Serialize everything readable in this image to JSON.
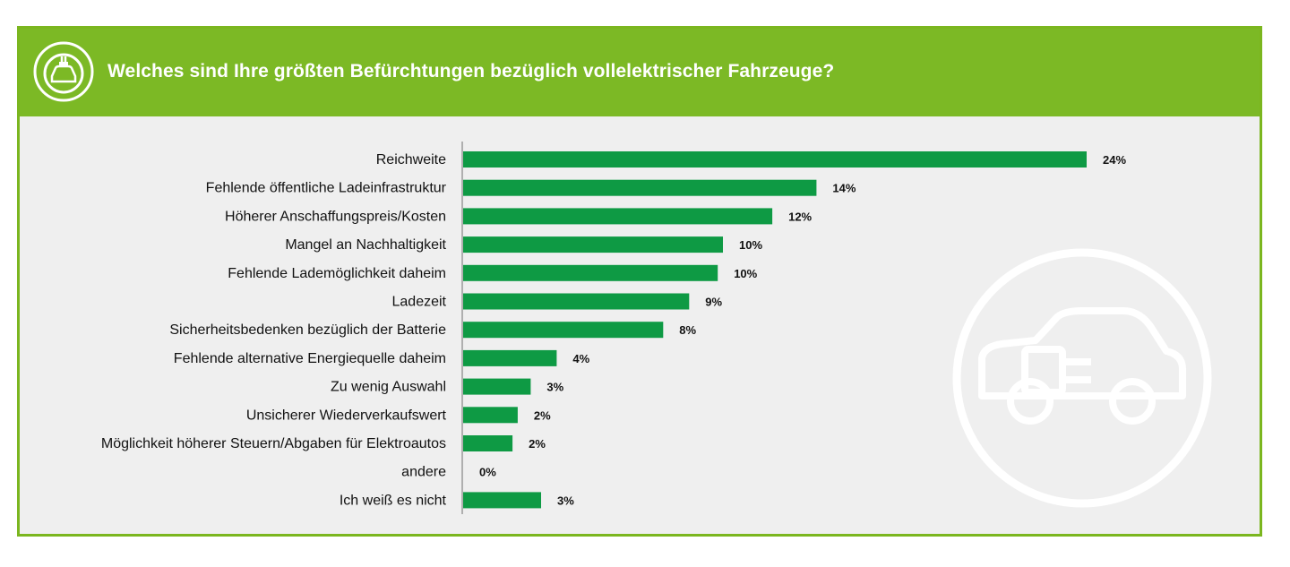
{
  "header": {
    "title": "Welches sind Ihre größten Befürchtungen bezüglich vollelektrischer Fahrzeuge?",
    "icon": "ev-car-icon"
  },
  "colors": {
    "accent": "#7cb925",
    "bar": "#0e9a44",
    "background": "#efefef"
  },
  "decoration": {
    "icon": "ev-car-plug-icon"
  },
  "chart_data": {
    "type": "bar",
    "orientation": "horizontal",
    "title": "Welches sind Ihre größten Befürchtungen bezüglich vollelektrischer Fahrzeuge?",
    "categories": [
      "Reichweite",
      "Fehlende öffentliche Ladeinfrastruktur",
      "Höherer Anschaffungspreis/Kosten",
      "Mangel an Nachhaltigkeit",
      "Fehlende Lademöglichkeit daheim",
      "Ladezeit",
      "Sicherheitsbedenken bezüglich der Batterie",
      "Fehlende alternative Energiequelle daheim",
      "Zu wenig Auswahl",
      "Unsicherer Wiederverkaufswert",
      "Möglichkeit höherer Steuern/Abgaben für Elektroautos",
      "andere",
      "Ich weiß es nicht"
    ],
    "values": [
      24,
      13.6,
      11.9,
      10.0,
      9.8,
      8.7,
      7.7,
      3.6,
      2.6,
      2.1,
      1.9,
      0,
      3.0
    ],
    "labels": [
      "24%",
      "14%",
      "12%",
      "10%",
      "10%",
      "9%",
      "8%",
      "4%",
      "3%",
      "2%",
      "2%",
      "0%",
      "3%"
    ],
    "xlim": [
      0,
      24
    ],
    "grid": false,
    "legend": "none"
  }
}
